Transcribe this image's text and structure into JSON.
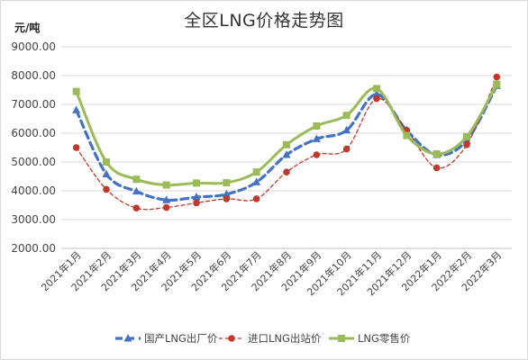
{
  "chart_data": {
    "type": "line",
    "title": "全区LNG价格走势图",
    "ylabel": "元/吨",
    "ylim": [
      2000,
      9000
    ],
    "yticks": [
      "9000.00",
      "8000.00",
      "7000.00",
      "6000.00",
      "5000.00",
      "4000.00",
      "3000.00",
      "2000.00"
    ],
    "ytick_values": [
      9000,
      8000,
      7000,
      6000,
      5000,
      4000,
      3000,
      2000
    ],
    "categories": [
      "2021年1月",
      "2021年2月",
      "2021年3月",
      "2021年4月",
      "2021年5月",
      "2021年6月",
      "2021年7月",
      "2021年8月",
      "2021年9月",
      "2021年10月",
      "2021年11月",
      "2021年12月",
      "2022年1月",
      "2022年2月",
      "2022年3月"
    ],
    "legend_position": "bottom",
    "grid": true,
    "series": [
      {
        "name": "国产LNG出厂价",
        "color": "#4472c4",
        "marker": "triangle",
        "style": "dashed",
        "values": [
          6800,
          4580,
          3980,
          3680,
          3780,
          3880,
          4300,
          5250,
          5800,
          6100,
          7350,
          6100,
          5250,
          5750,
          7650
        ]
      },
      {
        "name": "进口LNG出站价",
        "color": "#c0392b",
        "marker": "circle",
        "style": "dashed-thin",
        "values": [
          5500,
          4050,
          3400,
          3420,
          3580,
          3720,
          3720,
          4650,
          5250,
          5450,
          7200,
          6100,
          4800,
          5600,
          7950
        ]
      },
      {
        "name": "LNG零售价",
        "color": "#9bbb59",
        "marker": "square",
        "style": "solid",
        "values": [
          7450,
          5000,
          4400,
          4200,
          4270,
          4280,
          4650,
          5600,
          6250,
          6620,
          7550,
          5920,
          5280,
          5880,
          7700
        ]
      }
    ]
  }
}
